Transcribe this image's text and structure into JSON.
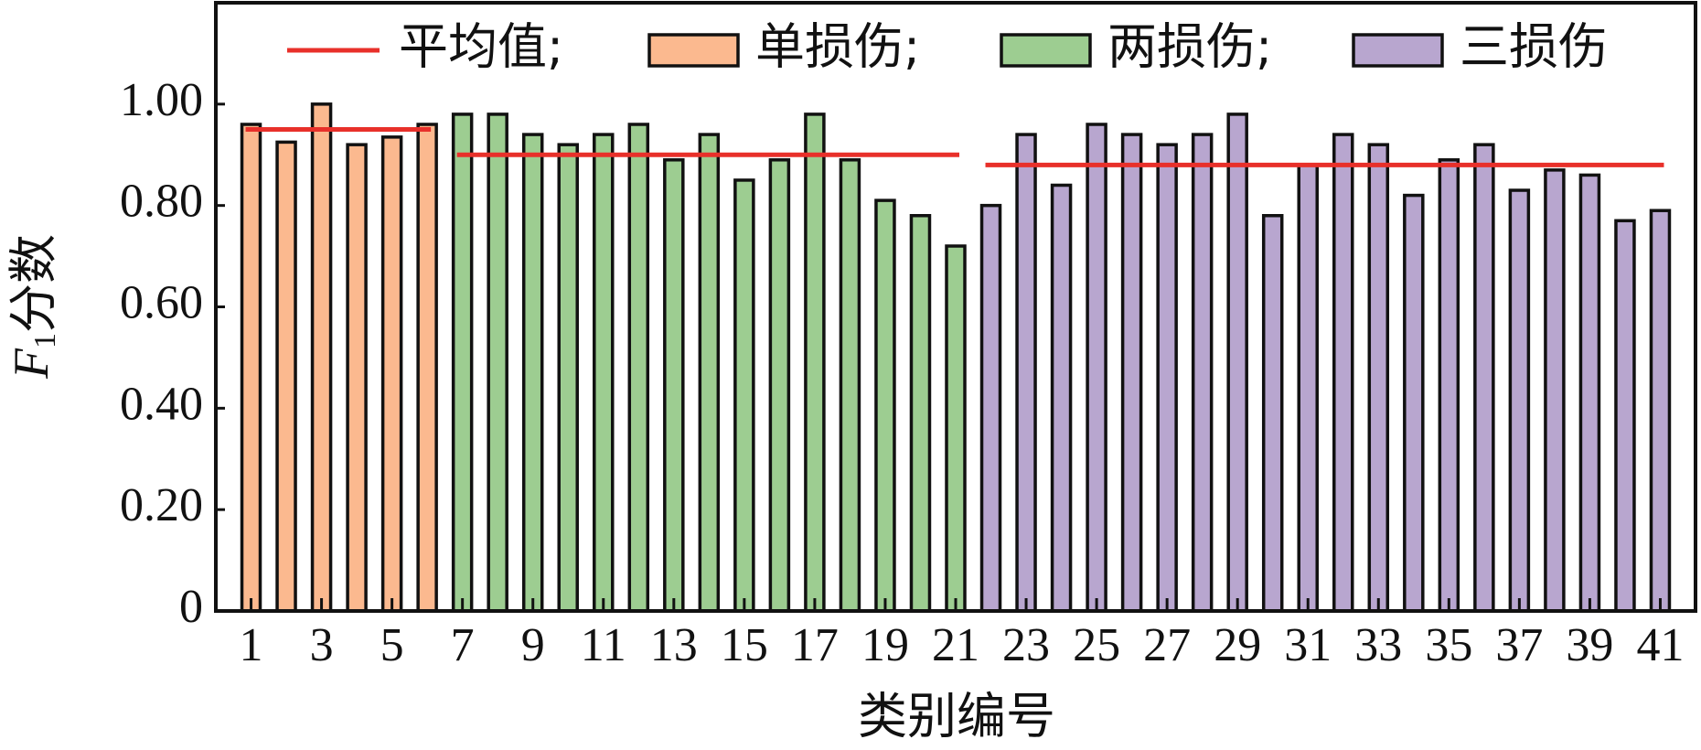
{
  "chart_data": {
    "type": "bar",
    "ylabel": [
      "F",
      "1",
      "分数"
    ],
    "xlabel": "类别编号",
    "categories": [
      1,
      null,
      3,
      null,
      5,
      null,
      7,
      null,
      9,
      null,
      11,
      null,
      13,
      null,
      15,
      null,
      17,
      null,
      19,
      null,
      21,
      null,
      23,
      null,
      25,
      null,
      27,
      null,
      29,
      null,
      31,
      null,
      33,
      null,
      35,
      null,
      37,
      null,
      39,
      null,
      41
    ],
    "series": [
      {
        "name": "单损伤;",
        "color": "#fbb98f",
        "values": [
          0.96,
          0.925,
          1.0,
          0.92,
          0.935,
          0.96,
          null,
          null,
          null,
          null,
          null,
          null,
          null,
          null,
          null,
          null,
          null,
          null,
          null,
          null,
          null,
          null,
          null,
          null,
          null,
          null,
          null,
          null,
          null,
          null,
          null,
          null,
          null,
          null,
          null,
          null,
          null,
          null,
          null,
          null,
          null
        ]
      },
      {
        "name": "两损伤;",
        "color": "#9dcd91",
        "values": [
          null,
          null,
          null,
          null,
          null,
          null,
          0.98,
          0.98,
          0.94,
          0.92,
          0.94,
          0.96,
          0.89,
          0.94,
          0.85,
          0.89,
          0.98,
          0.89,
          0.81,
          0.78,
          0.72,
          null,
          null,
          null,
          null,
          null,
          null,
          null,
          null,
          null,
          null,
          null,
          null,
          null,
          null,
          null,
          null,
          null,
          null,
          null,
          null
        ]
      },
      {
        "name": "三损伤",
        "color": "#b8a6cf",
        "values": [
          null,
          null,
          null,
          null,
          null,
          null,
          null,
          null,
          null,
          null,
          null,
          null,
          null,
          null,
          null,
          null,
          null,
          null,
          null,
          null,
          null,
          0.8,
          0.94,
          0.84,
          0.96,
          0.94,
          0.92,
          0.94,
          0.98,
          0.78,
          0.88,
          0.94,
          0.92,
          0.82,
          0.89,
          0.92,
          0.83,
          0.87,
          0.86,
          0.77,
          0.79
        ]
      }
    ],
    "mean": {
      "name": "平均值;",
      "color": "#e8302a",
      "values": [
        0.95,
        0.9,
        0.88
      ]
    },
    "ylim": [
      0,
      1.2
    ],
    "yticks": [
      0,
      {
        "value": 0.2,
        "label": "0.20"
      },
      {
        "value": 0.4,
        "label": "0.40"
      },
      {
        "value": 0.6,
        "label": "0.60"
      },
      {
        "value": 0.8,
        "label": "0.80"
      },
      {
        "value": 1.0,
        "label": "1.00"
      }
    ]
  }
}
